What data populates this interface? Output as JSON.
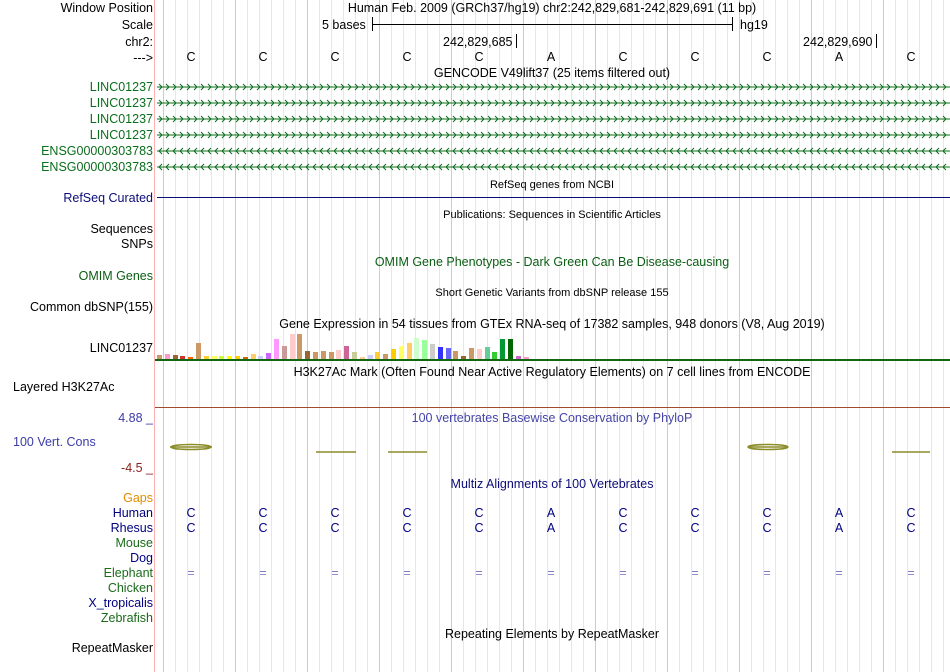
{
  "header": {
    "window_position_label": "Window Position",
    "scale_label": "Scale",
    "chr_label": "chr2:",
    "arrow_label": "--->",
    "assembly_title": "Human Feb. 2009 (GRCh37/hg19)   chr2:242,829,681-242,829,691 (11 bp)",
    "scale_text": "5 bases",
    "scale_db": "hg19",
    "pos1": "242,829,685",
    "pos2": "242,829,690"
  },
  "sequence": [
    "C",
    "C",
    "C",
    "C",
    "C",
    "A",
    "C",
    "C",
    "C",
    "A",
    "C"
  ],
  "tracks": {
    "gencode_title": "GENCODE V49lift37 (25 items filtered out)",
    "gencode_items": [
      {
        "label": "LINC01237",
        "strand": "+"
      },
      {
        "label": "LINC01237",
        "strand": "+"
      },
      {
        "label": "LINC01237",
        "strand": "+"
      },
      {
        "label": "LINC01237",
        "strand": "+"
      },
      {
        "label": "ENSG00000303783",
        "strand": "-"
      },
      {
        "label": "ENSG00000303783",
        "strand": "-"
      }
    ],
    "refseq_title": "RefSeq genes from NCBI",
    "refseq_label": "RefSeq Curated",
    "pubs_title": "Publications: Sequences in Scientific Articles",
    "sequences_label": "Sequences",
    "snps_label": "SNPs",
    "omim_title": "OMIM Gene Phenotypes - Dark Green Can Be Disease-causing",
    "omim_label": "OMIM Genes",
    "dbsnp_title": "Short Genetic Variants from dbSNP release 155",
    "dbsnp_label": "Common dbSNP(155)",
    "gtex_title": "Gene Expression in 54 tissues from GTEx RNA-seq of 17382 samples, 948 donors (V8, Aug 2019)",
    "gtex_label": "LINC01237",
    "h3k27_title": "H3K27Ac Mark (Often Found Near Active Regulatory Elements) on 7 cell lines from ENCODE",
    "h3k27_label": "Layered H3K27Ac",
    "cons_title": "100 vertebrates Basewise Conservation by PhyloP",
    "cons_label": "100 Vert. Cons",
    "cons_max": "4.88 _",
    "cons_min": "-4.5 _",
    "multiz_title": "Multiz Alignments of 100 Vertebrates",
    "gaps_label": "Gaps",
    "species": [
      {
        "name": "Human",
        "color": "#000080",
        "bases": [
          "C",
          "C",
          "C",
          "C",
          "C",
          "A",
          "C",
          "C",
          "C",
          "A",
          "C"
        ]
      },
      {
        "name": "Rhesus",
        "color": "#000080",
        "bases": [
          "C",
          "C",
          "C",
          "C",
          "C",
          "A",
          "C",
          "C",
          "C",
          "A",
          "C"
        ]
      },
      {
        "name": "Mouse",
        "color": "#1a6b1a",
        "bases": []
      },
      {
        "name": "Dog",
        "color": "#000080",
        "bases": []
      },
      {
        "name": "Elephant",
        "color": "#1a6b1a",
        "bases": [
          "=",
          "=",
          "=",
          "=",
          "=",
          "=",
          "=",
          "=",
          "=",
          "=",
          "="
        ]
      },
      {
        "name": "Chicken",
        "color": "#1a6b1a",
        "bases": []
      },
      {
        "name": "X_tropicalis",
        "color": "#000080",
        "bases": []
      },
      {
        "name": "Zebrafish",
        "color": "#1a6b1a",
        "bases": []
      }
    ],
    "repeat_title": "Repeating Elements by RepeatMasker",
    "repeat_label": "RepeatMasker"
  },
  "gtex_values": [
    4,
    5,
    4,
    3,
    2,
    16,
    3,
    3,
    3,
    3,
    3,
    2,
    5,
    3,
    6,
    20,
    13,
    25,
    25,
    8,
    7,
    8,
    7,
    9,
    13,
    7,
    2,
    4,
    7,
    5,
    10,
    13,
    16,
    21,
    19,
    15,
    12,
    11,
    8,
    3,
    11,
    10,
    12,
    7,
    20,
    20,
    3,
    2
  ],
  "gtex_colors": [
    "#cc9966",
    "#ff99cc",
    "#996633",
    "#cc3333",
    "#ff6600",
    "#cc9966",
    "#ffcc33",
    "#ffff66",
    "#ccff33",
    "#ffff00",
    "#ffcc00",
    "#cc6600",
    "#ffcc66",
    "#ccccff",
    "#cc66ff",
    "#ff99ff",
    "#cc9999",
    "#ffcccc",
    "#cc9966",
    "#996633",
    "#cc9966",
    "#cc9966",
    "#cc9966",
    "#ffcccc",
    "#cc6699",
    "#cccc99",
    "#ffcc99",
    "#ccccff",
    "#ffcc33",
    "#cc9966",
    "#ffcc00",
    "#ffff66",
    "#ffcc66",
    "#ccffcc",
    "#99ff99",
    "#cccccc",
    "#3333ff",
    "#6666ff",
    "#cc9966",
    "#996633",
    "#cc9966",
    "#ffcccc",
    "#66cc99",
    "#33cc33",
    "#009933",
    "#006600",
    "#cc66cc",
    "#ff99cc"
  ],
  "colors": {
    "gencode": "#0b6e1c",
    "refseq": "#0c0c78",
    "omim": "#0b5e14",
    "cons_title": "#4545a8",
    "cons_max": "#3b3ba6",
    "cons_min": "#8e2020",
    "gaps": "#e08e00",
    "h3k27_line": "#a04b2f",
    "gtex_line": "#116611",
    "grid": "#d0d0e8",
    "red_line": "#ffb0b0"
  }
}
